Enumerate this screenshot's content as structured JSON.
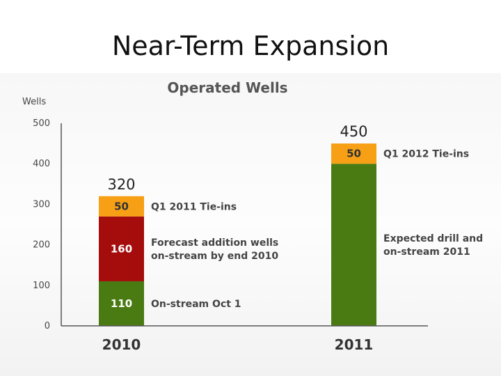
{
  "slide": {
    "title": "Near-Term Expansion"
  },
  "chart_data": {
    "type": "bar",
    "stacked": true,
    "title": "Operated Wells",
    "ylabel": "Wells",
    "xlabel": "",
    "ylim": [
      0,
      500
    ],
    "yticks": [
      0,
      100,
      200,
      300,
      400,
      500
    ],
    "grid": false,
    "categories": [
      "2010",
      "2011"
    ],
    "totals": [
      320,
      450
    ],
    "segments": [
      {
        "category": "2010",
        "value": 110,
        "label": "110",
        "color": "#4a7a12",
        "text_color": "#ffffff",
        "annotation": [
          "On-stream Oct 1"
        ]
      },
      {
        "category": "2010",
        "value": 160,
        "label": "160",
        "color": "#a50d0d",
        "text_color": "#ffffff",
        "annotation": [
          "Forecast addition wells",
          "on-stream by end 2010"
        ]
      },
      {
        "category": "2010",
        "value": 50,
        "label": "50",
        "color": "#f7a015",
        "text_color": "#333333",
        "annotation": [
          "Q1 2011 Tie-ins"
        ]
      },
      {
        "category": "2011",
        "value": 400,
        "label": "",
        "color": "#4a7a12",
        "text_color": "#ffffff",
        "annotation": [
          "Expected drill and",
          "on-stream 2011"
        ]
      },
      {
        "category": "2011",
        "value": 50,
        "label": "50",
        "color": "#f7a015",
        "text_color": "#333333",
        "annotation": [
          "Q1 2012 Tie-ins"
        ]
      }
    ]
  }
}
